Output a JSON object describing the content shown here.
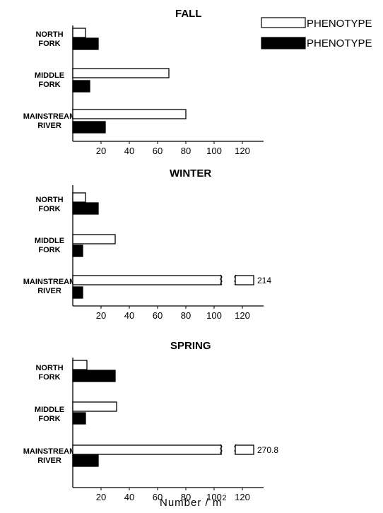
{
  "legend": [
    {
      "label": "PHENOTYPE",
      "color": "#ffffff"
    },
    {
      "label": "PHENOTYPE",
      "color": "#000000"
    }
  ],
  "x_axis_title": "Number / m",
  "x_axis_superscript": "2",
  "chart_data": [
    {
      "type": "bar",
      "orientation": "horizontal",
      "title": "FALL",
      "categories": [
        [
          "NORTH",
          "FORK"
        ],
        [
          "MIDDLE",
          "FORK"
        ],
        [
          "MAINSTREAM",
          "RIVER"
        ]
      ],
      "series": [
        {
          "color": "#ffffff",
          "values": [
            9,
            68,
            80
          ]
        },
        {
          "color": "#000000",
          "values": [
            18,
            12,
            23
          ]
        }
      ],
      "xticks": [
        20,
        40,
        60,
        80,
        100,
        120
      ],
      "xlim": [
        0,
        135
      ],
      "break": null,
      "xlabel": "Number / m2"
    },
    {
      "type": "bar",
      "orientation": "horizontal",
      "title": "WINTER",
      "categories": [
        [
          "NORTH",
          "FORK"
        ],
        [
          "MIDDLE",
          "FORK"
        ],
        [
          "MAINSTREAM",
          "RIVER"
        ]
      ],
      "series": [
        {
          "color": "#ffffff",
          "values": [
            9,
            30,
            214
          ]
        },
        {
          "color": "#000000",
          "values": [
            18,
            7,
            7
          ]
        }
      ],
      "xticks": [
        20,
        40,
        60,
        80,
        100,
        120
      ],
      "xlim": [
        0,
        135
      ],
      "break": {
        "label": "214"
      },
      "xlabel": "Number / m2"
    },
    {
      "type": "bar",
      "orientation": "horizontal",
      "title": "SPRING",
      "categories": [
        [
          "NORTH",
          "FORK"
        ],
        [
          "MIDDLE",
          "FORK"
        ],
        [
          "MAINSTREAM",
          "RIVER"
        ]
      ],
      "series": [
        {
          "color": "#ffffff",
          "values": [
            10,
            31,
            270.8
          ]
        },
        {
          "color": "#000000",
          "values": [
            30,
            9,
            18
          ]
        }
      ],
      "xticks": [
        20,
        40,
        60,
        80,
        100,
        120
      ],
      "xlim": [
        0,
        135
      ],
      "break": {
        "label": "270.8"
      },
      "xlabel": "Number / m2"
    }
  ]
}
